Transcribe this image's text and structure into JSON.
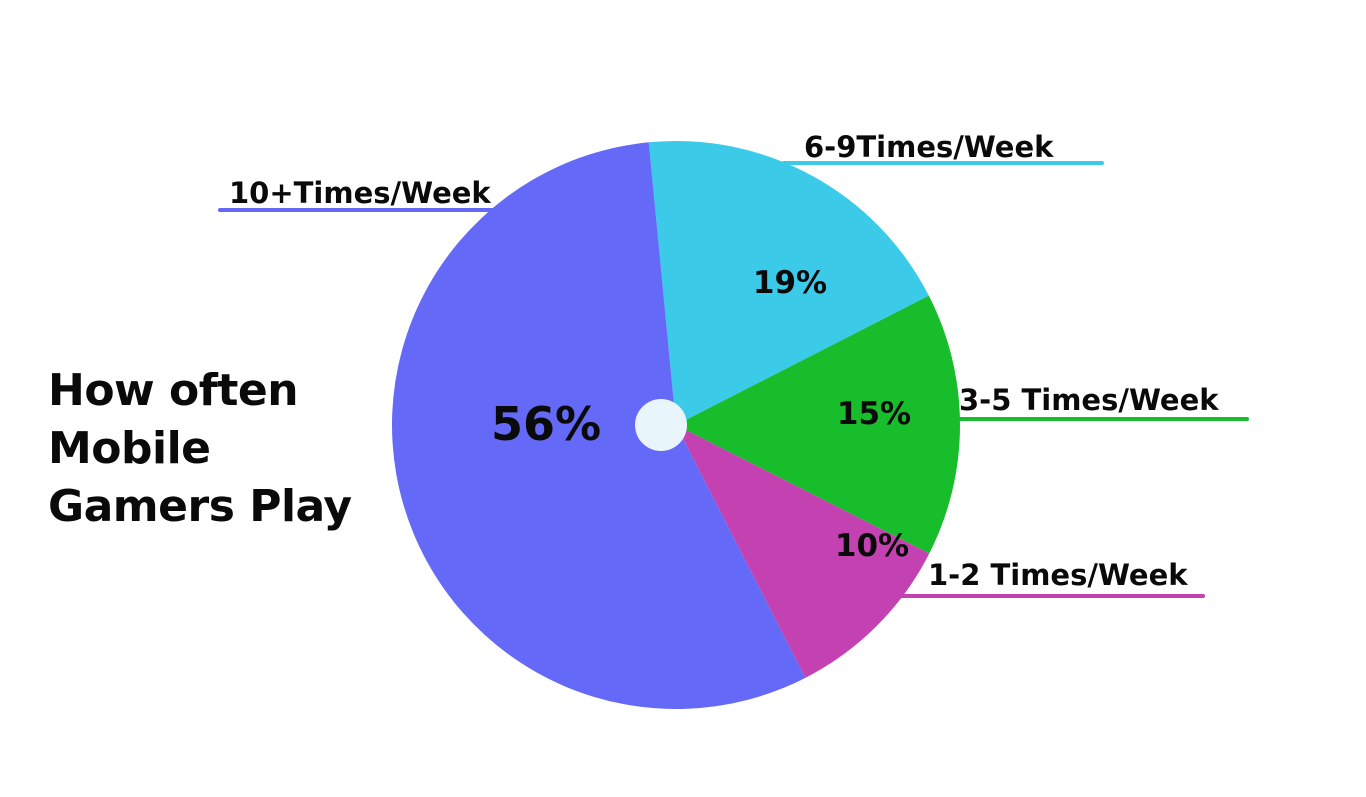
{
  "title_lines": [
    "How often",
    "Mobile",
    "Gamers Play"
  ],
  "chart_data": {
    "type": "pie",
    "slices": [
      {
        "label": "10+Times/Week",
        "value": 56,
        "display": "56%",
        "color": "#6469f7"
      },
      {
        "label": "6-9Times/Week",
        "value": 19,
        "display": "19%",
        "color": "#3bcbe8"
      },
      {
        "label": "3-5 Times/Week",
        "value": 15,
        "display": "15%",
        "color": "#17bd2b"
      },
      {
        "label": "1-2 Times/Week",
        "value": 10,
        "display": "10%",
        "color": "#c341b0"
      }
    ],
    "center_hole_color": "#e8f6fb",
    "legend_placement": "around pie with underlines"
  }
}
